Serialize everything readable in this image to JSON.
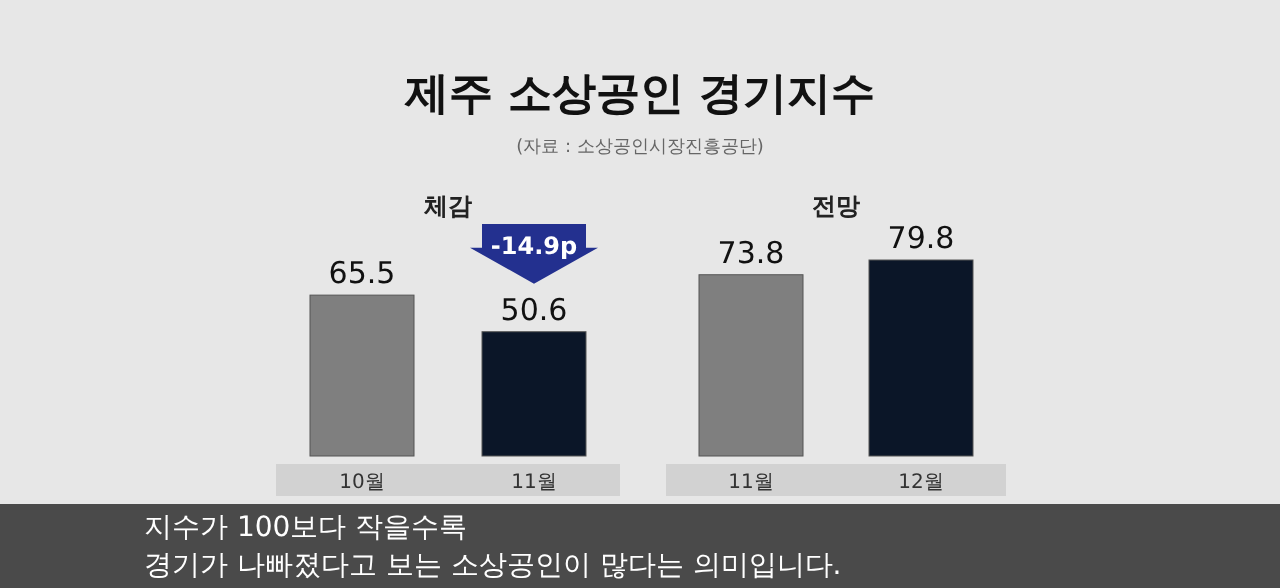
{
  "chart_data": [
    {
      "type": "bar",
      "title": "제주 소상공인 경기지수",
      "subtitle": "체감",
      "categories": [
        "10월",
        "11월"
      ],
      "values": [
        65.5,
        50.6
      ],
      "colors": [
        "#7f7f7f",
        "#0b1628"
      ],
      "data_labels": true,
      "annotations": [
        "(자료 : 소상공인시장진흥공단)",
        "-14.9p",
        "지수가 100보다 작을수록",
        "경기가 나빠졌다고 보는 소상공인이 많다는 의미입니다."
      ]
    },
    {
      "type": "bar",
      "subtitle": "전망",
      "categories": [
        "11월",
        "12월"
      ],
      "values": [
        73.8,
        79.8
      ],
      "colors": [
        "#7f7f7f",
        "#0b1628"
      ],
      "data_labels": true
    }
  ]
}
